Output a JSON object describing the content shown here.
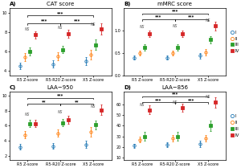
{
  "chart_data": [
    {
      "type": "scatter",
      "label": "A)",
      "title": "CAT score",
      "categories": [
        "R5 Z-score",
        "R5-R20 Z-score",
        "X5 Z-score"
      ],
      "ylim": [
        3.5,
        10.5
      ],
      "yticks": [
        4,
        6,
        8,
        10
      ],
      "series": [
        {
          "name": "I",
          "marker": "circle-open",
          "values": [
            4.5,
            4.7,
            5.0
          ],
          "errors": [
            0.35,
            0.35,
            0.45
          ]
        },
        {
          "name": "II",
          "marker": "circle-open",
          "values": [
            5.4,
            5.5,
            5.7
          ],
          "errors": [
            0.4,
            0.4,
            0.5
          ]
        },
        {
          "name": "III",
          "marker": "square",
          "values": [
            6.0,
            6.2,
            6.7
          ],
          "errors": [
            0.4,
            0.4,
            0.5
          ]
        },
        {
          "name": "IV",
          "marker": "square",
          "values": [
            7.7,
            7.8,
            8.3
          ],
          "errors": [
            0.4,
            0.4,
            0.6
          ]
        }
      ],
      "brackets": [
        {
          "from": "R5 Z-score",
          "to": "X5 Z-score",
          "y": 9.7,
          "label": "***"
        },
        {
          "from": "R5 Z-score",
          "to": "R5-R20 Z-score",
          "y": 8.9,
          "label": "***"
        },
        {
          "from": "R5-R20 Z-score",
          "to": "X5 Z-score",
          "y": 8.9,
          "label": "***"
        }
      ],
      "annotations": [
        {
          "category": "R5 Z-score",
          "y": 8.1,
          "label": "NS"
        },
        {
          "category": "R5-R20 Z-score",
          "y": 8.2,
          "label": "NS"
        },
        {
          "category": "X5 Z-score",
          "y": 8.6,
          "label": "NS"
        }
      ]
    },
    {
      "type": "scatter",
      "label": "B)",
      "title": "mMRC score",
      "categories": [
        "R5 Z-score",
        "R5-R20 Z-score",
        "X5 Z-score"
      ],
      "ylim": [
        0.0,
        1.5
      ],
      "yticks": [
        0.0,
        0.5,
        1.0
      ],
      "series": [
        {
          "name": "I",
          "marker": "circle-open",
          "values": [
            0.4,
            0.4,
            0.44
          ],
          "errors": [
            0.05,
            0.05,
            0.06
          ]
        },
        {
          "name": "II",
          "marker": "circle-open",
          "values": [
            0.5,
            0.5,
            0.52
          ],
          "errors": [
            0.06,
            0.06,
            0.07
          ]
        },
        {
          "name": "III",
          "marker": "square",
          "values": [
            0.62,
            0.63,
            0.8
          ],
          "errors": [
            0.07,
            0.07,
            0.08
          ]
        },
        {
          "name": "IV",
          "marker": "square",
          "values": [
            0.92,
            0.93,
            1.1
          ],
          "errors": [
            0.07,
            0.07,
            0.1
          ]
        }
      ],
      "brackets": [
        {
          "from": "R5 Z-score",
          "to": "X5 Z-score",
          "y": 1.38,
          "label": "***"
        },
        {
          "from": "R5 Z-score",
          "to": "R5-R20 Z-score",
          "y": 1.25,
          "label": "***"
        },
        {
          "from": "R5-R20 Z-score",
          "to": "X5 Z-score",
          "y": 1.25,
          "label": "***"
        }
      ],
      "annotations": [
        {
          "category": "R5 Z-score",
          "y": 1.04,
          "label": "NS"
        },
        {
          "category": "R5-R20 Z-score",
          "y": 1.05,
          "label": "NS"
        },
        {
          "category": "X5 Z-score",
          "y": 1.18,
          "label": "NS"
        }
      ],
      "legend": "center left"
    },
    {
      "type": "scatter",
      "label": "C)",
      "title": "LAA−950",
      "categories": [
        "R5 Z-score",
        "R5-R20 Z-score",
        "X5 Z-score"
      ],
      "ylim": [
        1.5,
        10.5
      ],
      "yticks": [
        2,
        4,
        6,
        8,
        10
      ],
      "series": [
        {
          "name": "I",
          "marker": "circle-open",
          "values": [
            3.2,
            3.3,
            3.5
          ],
          "errors": [
            0.4,
            0.4,
            0.5
          ]
        },
        {
          "name": "II",
          "marker": "circle-open",
          "values": [
            4.8,
            5.0,
            5.2
          ],
          "errors": [
            0.5,
            0.5,
            0.6
          ]
        },
        {
          "name": "III",
          "marker": "square",
          "values": [
            6.3,
            6.4,
            6.1
          ],
          "errors": [
            0.5,
            0.5,
            0.6
          ]
        },
        {
          "name": "IV",
          "marker": "square",
          "values": [
            6.3,
            6.8,
            8.1
          ],
          "errors": [
            0.5,
            0.5,
            0.7
          ]
        }
      ],
      "brackets": [
        {
          "from": "R5 Z-score",
          "to": "X5 Z-score",
          "y": 9.7,
          "label": "***"
        },
        {
          "from": "R5 Z-score",
          "to": "R5-R20 Z-score",
          "y": 8.9,
          "label": "**"
        },
        {
          "from": "R5-R20 Z-score",
          "to": "X5 Z-score",
          "y": 8.9,
          "label": "**"
        }
      ],
      "annotations": [
        {
          "category": "R5 Z-score",
          "y": 7.2,
          "label": "NS"
        },
        {
          "category": "R5-R20 Z-score",
          "y": 7.5,
          "label": "NS"
        },
        {
          "category": "X5 Z-score",
          "y": 8.3,
          "label": "NS"
        }
      ]
    },
    {
      "type": "scatter",
      "label": "D)",
      "title": "LAA−856",
      "categories": [
        "R5 Z-score",
        "R5-R20 Z-score",
        "X5 Z-score"
      ],
      "ylim": [
        8,
        72
      ],
      "yticks": [
        10,
        20,
        30,
        40,
        50,
        60
      ],
      "series": [
        {
          "name": "I",
          "marker": "circle-open",
          "values": [
            21,
            22,
            23
          ],
          "errors": [
            2,
            2,
            3
          ]
        },
        {
          "name": "II",
          "marker": "circle-open",
          "values": [
            27,
            28,
            28
          ],
          "errors": [
            3,
            3,
            3
          ]
        },
        {
          "name": "III",
          "marker": "square",
          "values": [
            30,
            30,
            40
          ],
          "errors": [
            4,
            4,
            5
          ]
        },
        {
          "name": "IV",
          "marker": "square",
          "values": [
            55,
            57,
            62
          ],
          "errors": [
            4,
            4,
            5
          ]
        }
      ],
      "brackets": [
        {
          "from": "R5 Z-score",
          "to": "X5 Z-score",
          "y": 68,
          "label": "***"
        },
        {
          "from": "R5 Z-score",
          "to": "R5-R20 Z-score",
          "y": 62,
          "label": "***"
        },
        {
          "from": "R5-R20 Z-score",
          "to": "X5 Z-score",
          "y": 62,
          "label": "***"
        }
      ],
      "annotations": [
        {
          "category": "R5 Z-score",
          "y": 58,
          "label": "NS"
        },
        {
          "category": "R5-R20 Z-score",
          "y": 60,
          "label": "NS"
        },
        {
          "category": "X5 Z-score",
          "y": 65,
          "label": "NS"
        }
      ],
      "legend": "center left"
    }
  ]
}
